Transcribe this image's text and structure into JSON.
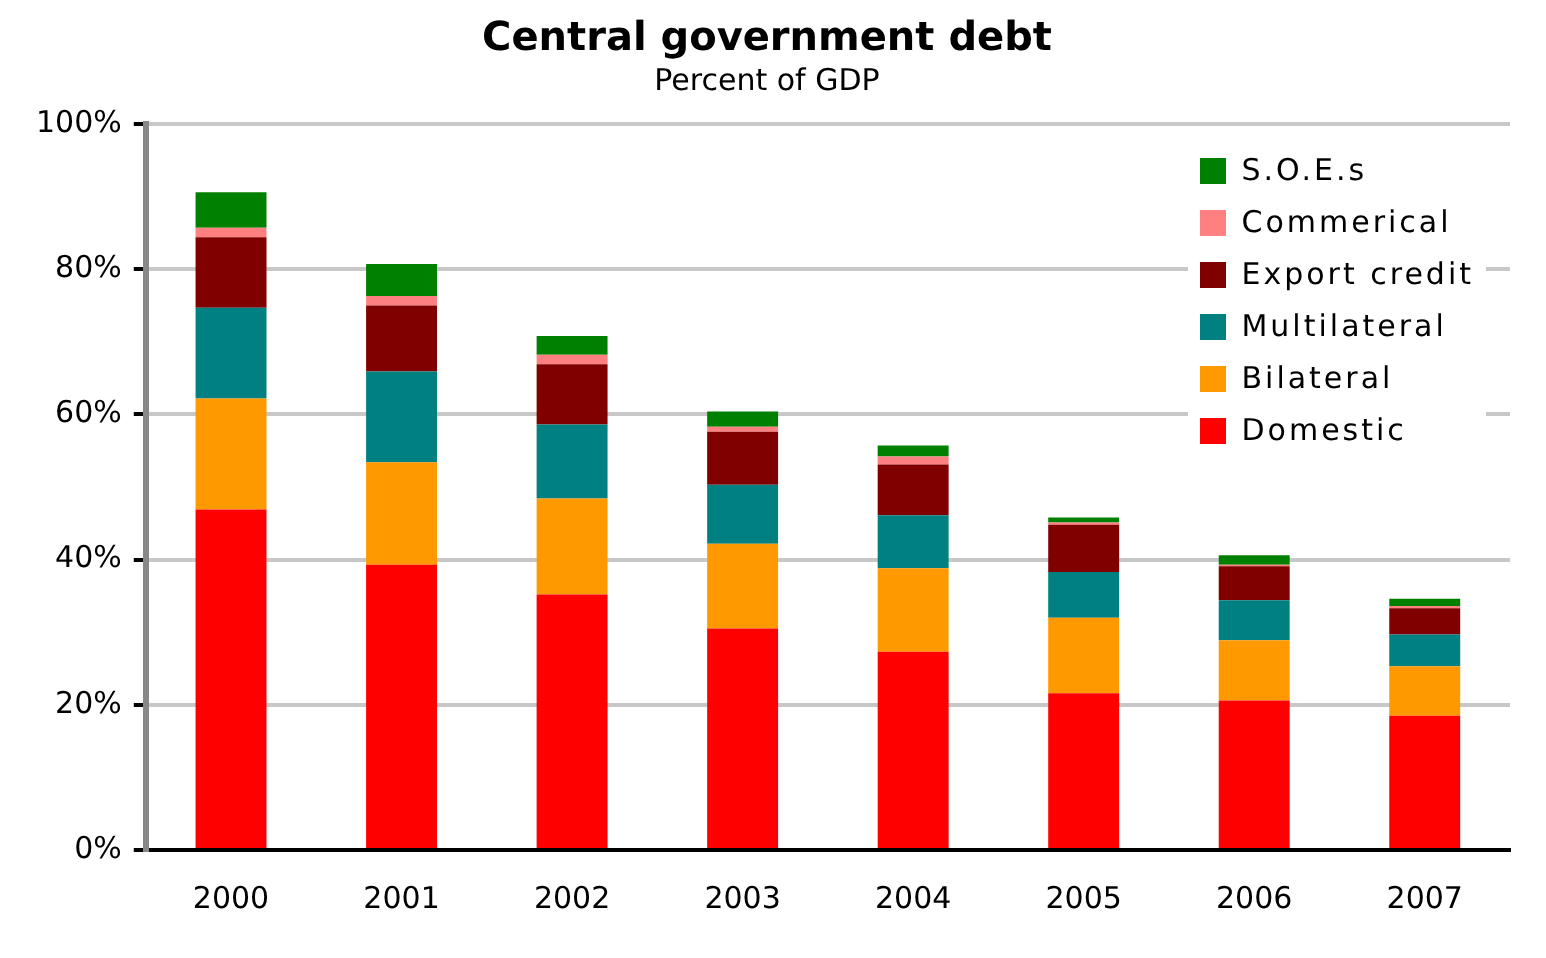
{
  "chart_data": {
    "type": "bar",
    "title": "Central government debt",
    "subtitle": "Percent of GDP",
    "stacked": true,
    "categories": [
      "2000",
      "2001",
      "2002",
      "2003",
      "2004",
      "2005",
      "2006",
      "2007"
    ],
    "series": [
      {
        "name": "Domestic",
        "color": "#ff0000",
        "values": [
          46.9,
          39.3,
          35.2,
          30.5,
          27.3,
          21.6,
          20.6,
          18.5
        ]
      },
      {
        "name": "Bilateral",
        "color": "#ff9900",
        "values": [
          15.3,
          14.1,
          13.2,
          11.7,
          11.5,
          10.4,
          8.3,
          6.8
        ]
      },
      {
        "name": "Multilateral",
        "color": "#008080",
        "values": [
          12.5,
          12.5,
          10.2,
          8.1,
          7.3,
          6.3,
          5.5,
          4.4
        ]
      },
      {
        "name": "Export credit",
        "color": "#800000",
        "values": [
          9.7,
          9.1,
          8.3,
          7.3,
          7.0,
          6.5,
          4.7,
          3.6
        ]
      },
      {
        "name": "Commerical",
        "color": "#ff8080",
        "values": [
          1.3,
          1.3,
          1.3,
          0.7,
          1.1,
          0.3,
          0.2,
          0.3
        ]
      },
      {
        "name": "S.O.E.s",
        "color": "#008000",
        "values": [
          4.9,
          4.4,
          2.6,
          2.1,
          1.5,
          0.7,
          1.3,
          1.0
        ]
      }
    ],
    "ylim": [
      0,
      100
    ],
    "yticks": [
      {
        "value": 0,
        "label": "0%"
      },
      {
        "value": 20,
        "label": "20%"
      },
      {
        "value": 40,
        "label": "40%"
      },
      {
        "value": 60,
        "label": "60%"
      },
      {
        "value": 80,
        "label": "80%"
      },
      {
        "value": 100,
        "label": "100%"
      }
    ],
    "grid": "y",
    "legend": "top right"
  }
}
